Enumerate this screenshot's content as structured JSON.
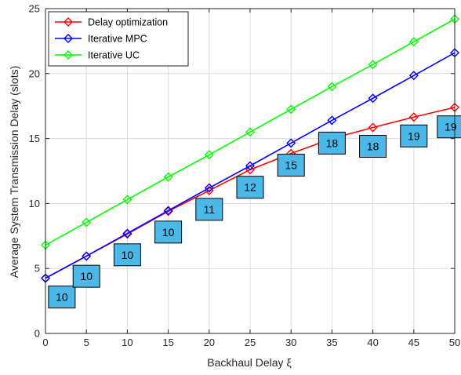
{
  "chart_data": {
    "type": "line",
    "title": "",
    "xlabel": "Backhaul Delay ξ",
    "ylabel": "Average System Transmission Delay (slots)",
    "xlim": [
      0,
      50
    ],
    "ylim": [
      0,
      25
    ],
    "xticks": [
      0,
      5,
      10,
      15,
      20,
      25,
      30,
      35,
      40,
      45,
      50
    ],
    "yticks": [
      0,
      5,
      10,
      15,
      20,
      25
    ],
    "grid": true,
    "legend_position": "top-left",
    "x": [
      0,
      5,
      10,
      15,
      20,
      25,
      30,
      35,
      40,
      45,
      50
    ],
    "series": [
      {
        "name": "Delay optimization",
        "color": "#ff0000",
        "marker": "diamond",
        "values": [
          4.25,
          5.95,
          7.65,
          9.4,
          11.0,
          12.6,
          13.85,
          15.0,
          15.85,
          16.65,
          17.4
        ]
      },
      {
        "name": "Iterative MPC",
        "color": "#0000ff",
        "marker": "diamond",
        "values": [
          4.25,
          5.95,
          7.7,
          9.45,
          11.2,
          12.9,
          14.65,
          16.4,
          18.1,
          19.85,
          21.6
        ]
      },
      {
        "name": "Iterative UC",
        "color": "#00ff00",
        "marker": "diamond",
        "values": [
          6.8,
          8.55,
          10.3,
          12.05,
          13.75,
          15.5,
          17.25,
          19.0,
          20.7,
          22.45,
          24.2
        ]
      }
    ],
    "annotations": [
      {
        "x": 2,
        "y": 2.8,
        "text": "10"
      },
      {
        "x": 5,
        "y": 4.4,
        "text": "10"
      },
      {
        "x": 10,
        "y": 6.05,
        "text": "10"
      },
      {
        "x": 15,
        "y": 7.8,
        "text": "10"
      },
      {
        "x": 20,
        "y": 9.55,
        "text": "11"
      },
      {
        "x": 25,
        "y": 11.25,
        "text": "12"
      },
      {
        "x": 30,
        "y": 12.95,
        "text": "15"
      },
      {
        "x": 35,
        "y": 14.65,
        "text": "18"
      },
      {
        "x": 40,
        "y": 14.4,
        "text": "18"
      },
      {
        "x": 45,
        "y": 15.2,
        "text": "19"
      },
      {
        "x": 49.5,
        "y": 15.9,
        "text": "19"
      }
    ],
    "annotation_style": {
      "fill": "#4cb8e8",
      "border": "#000000"
    }
  }
}
